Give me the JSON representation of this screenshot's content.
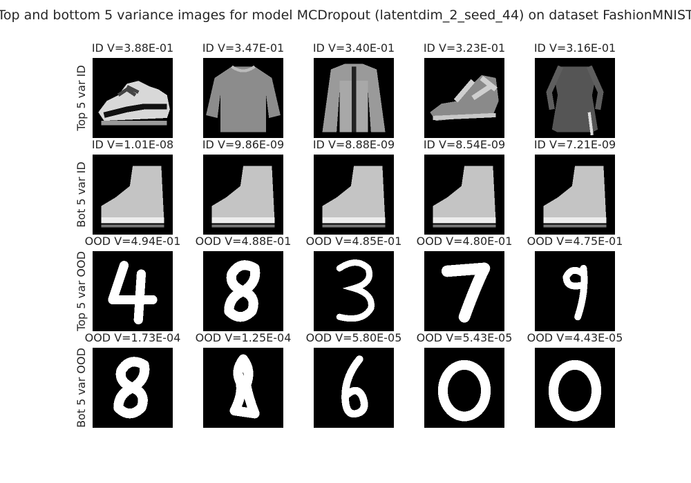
{
  "chart_data": {
    "type": "image-grid",
    "title": "Top and bottom 5 variance images for model MCDropout (latentdim_2_seed_44) on dataset FashionMNIST",
    "rows": [
      {
        "label": "Top 5 var ID",
        "cells": [
          {
            "title": "ID V=3.88E-01",
            "content": "sneaker"
          },
          {
            "title": "ID V=3.47E-01",
            "content": "shirt"
          },
          {
            "title": "ID V=3.40E-01",
            "content": "coat"
          },
          {
            "title": "ID V=3.23E-01",
            "content": "sandal"
          },
          {
            "title": "ID V=3.16E-01",
            "content": "dress"
          }
        ]
      },
      {
        "label": "Bot 5 var ID",
        "cells": [
          {
            "title": "ID V=1.01E-08",
            "content": "boot"
          },
          {
            "title": "ID V=9.86E-09",
            "content": "boot"
          },
          {
            "title": "ID V=8.88E-09",
            "content": "boot"
          },
          {
            "title": "ID V=8.54E-09",
            "content": "boot"
          },
          {
            "title": "ID V=7.21E-09",
            "content": "boot"
          }
        ]
      },
      {
        "label": "Top 5 var OOD",
        "cells": [
          {
            "title": "OOD V=4.94E-01",
            "content": "digit-4"
          },
          {
            "title": "OOD V=4.88E-01",
            "content": "digit-8"
          },
          {
            "title": "OOD V=4.85E-01",
            "content": "digit-3"
          },
          {
            "title": "OOD V=4.80E-01",
            "content": "digit-7"
          },
          {
            "title": "OOD V=4.75E-01",
            "content": "digit-9"
          }
        ]
      },
      {
        "label": "Bot 5 var OOD",
        "cells": [
          {
            "title": "OOD V=1.73E-04",
            "content": "digit-8"
          },
          {
            "title": "OOD V=1.25E-04",
            "content": "digit-1"
          },
          {
            "title": "OOD V=5.80E-05",
            "content": "digit-6"
          },
          {
            "title": "OOD V=5.43E-05",
            "content": "digit-0"
          },
          {
            "title": "OOD V=4.43E-05",
            "content": "digit-0"
          }
        ]
      }
    ]
  }
}
